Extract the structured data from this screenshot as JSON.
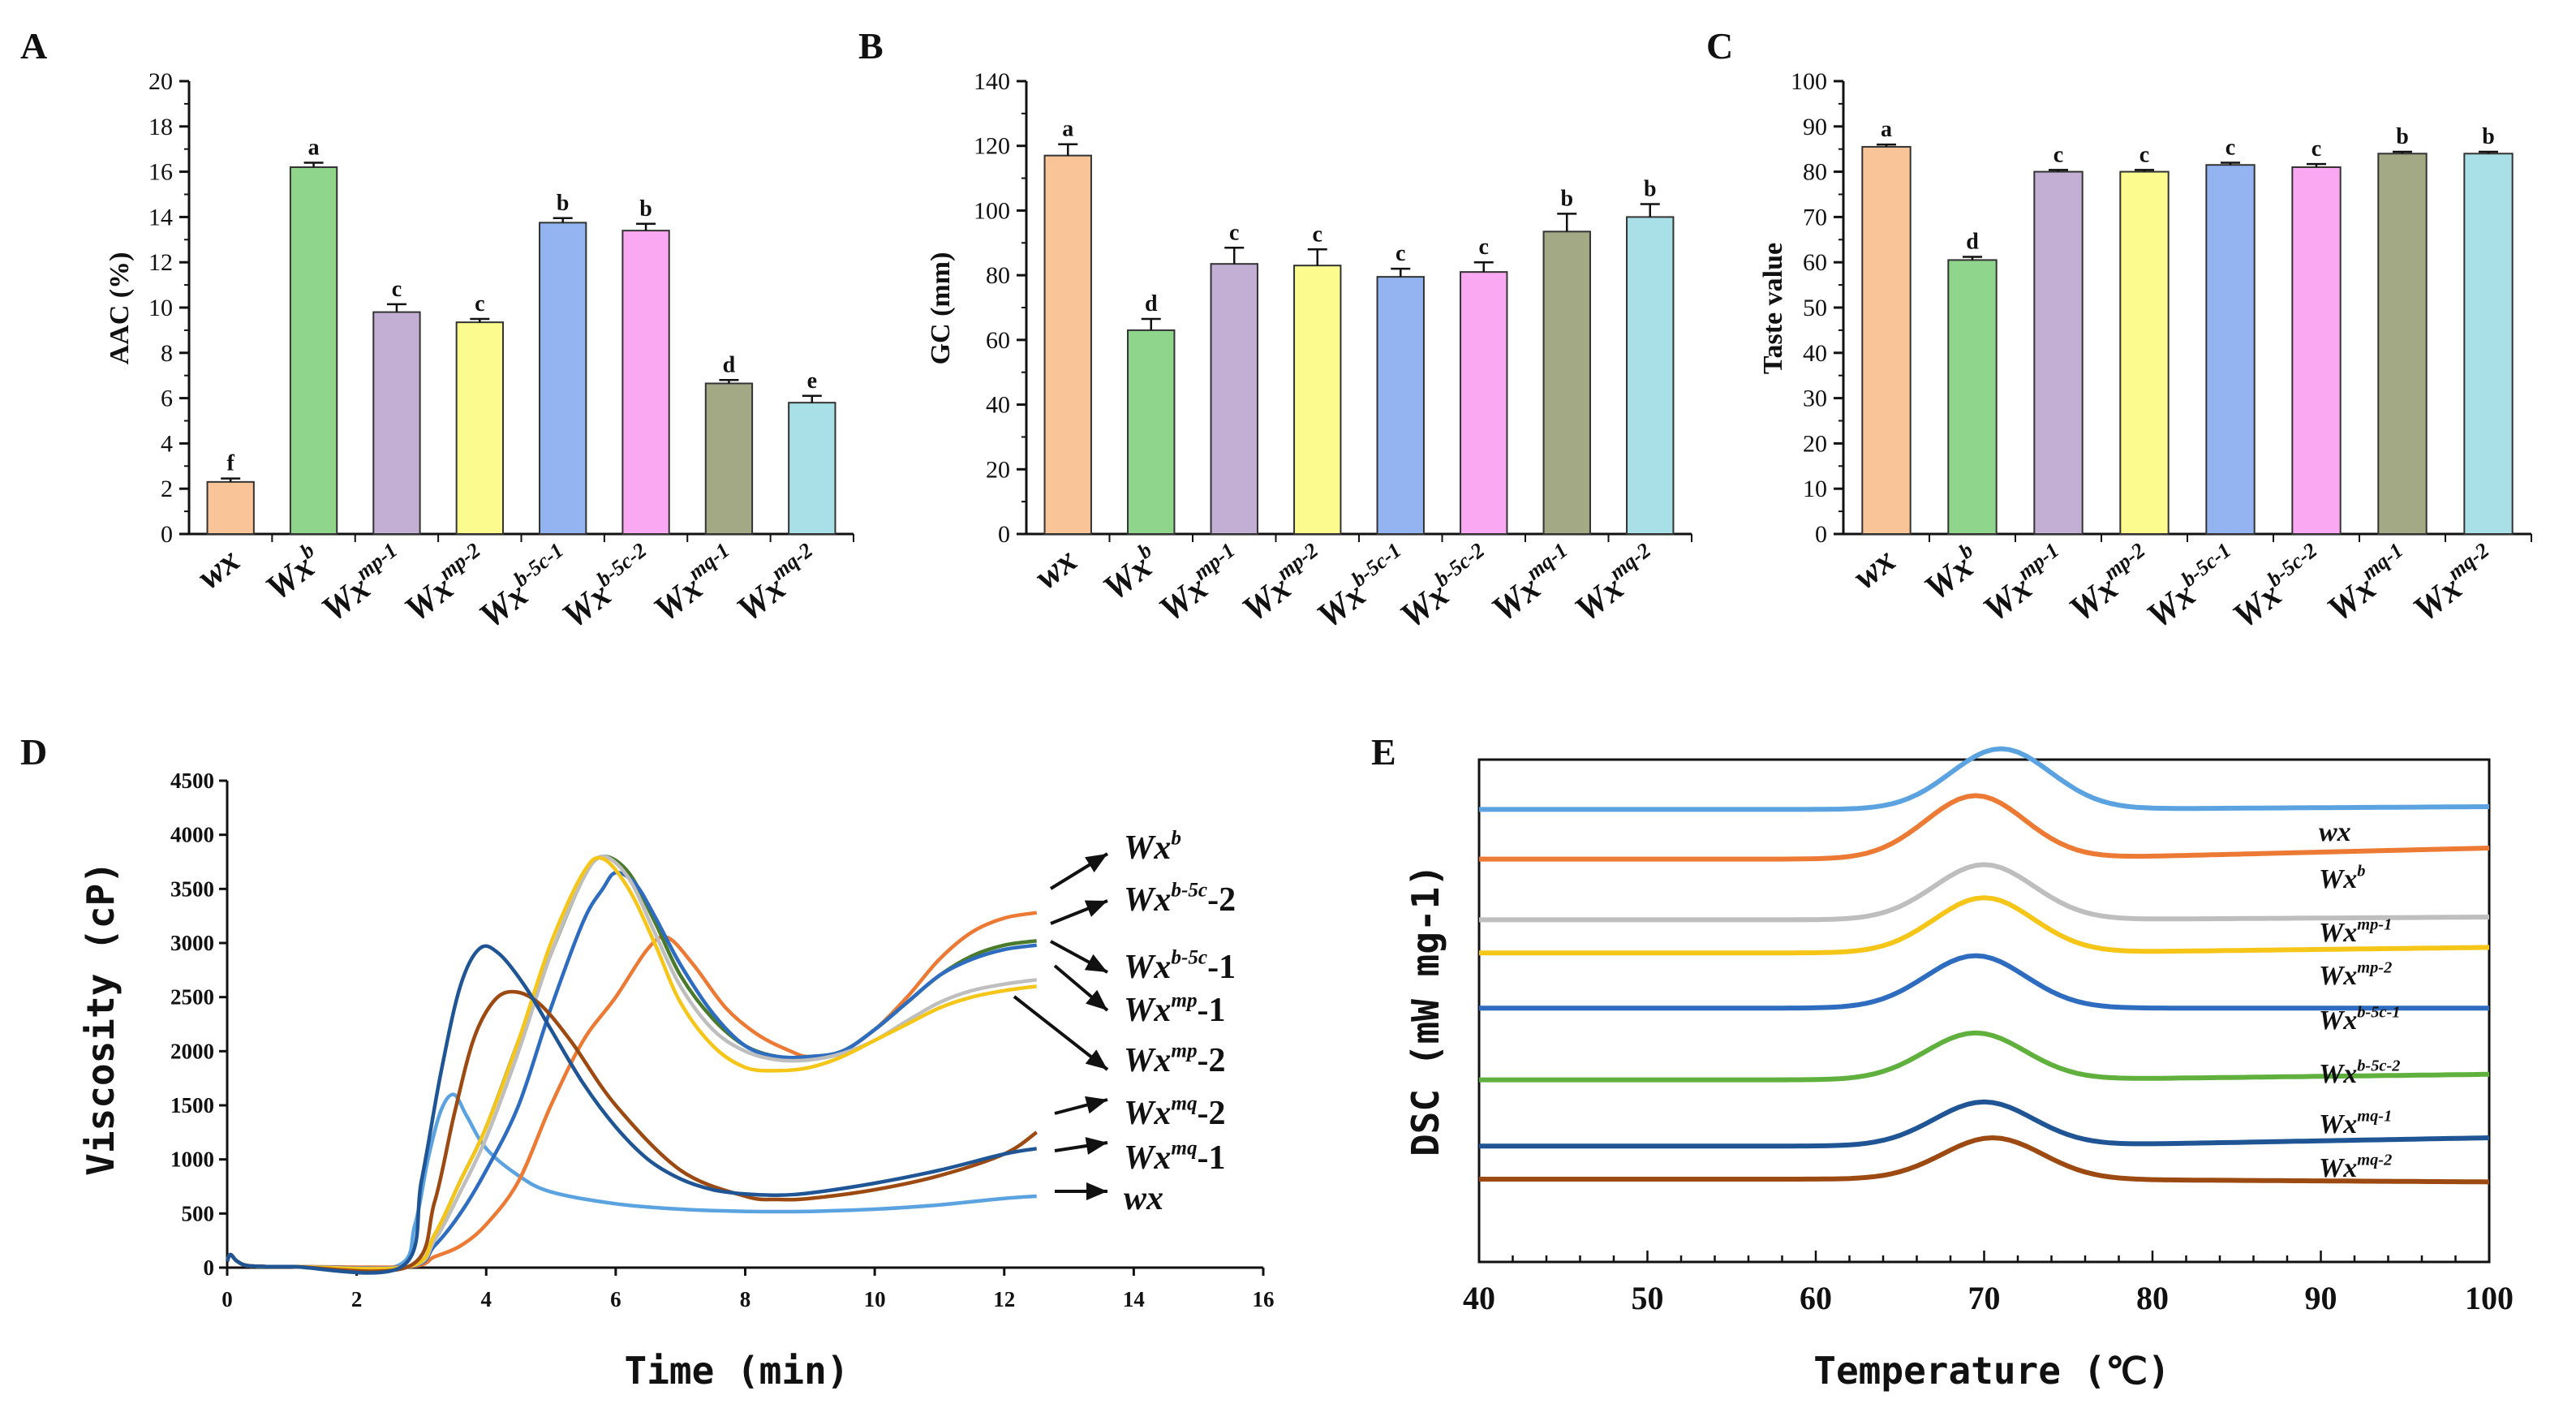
{
  "bar_colors": [
    "#F9C497",
    "#8FD68C",
    "#C3AED4",
    "#FBFB8E",
    "#93B4F1",
    "#FBA8F3",
    "#A4A985",
    "#A9DFE6"
  ],
  "genotypes": [
    {
      "base": "wx",
      "sup": ""
    },
    {
      "base": "Wx",
      "sup": "b"
    },
    {
      "base": "Wx",
      "sup": "mp-1"
    },
    {
      "base": "Wx",
      "sup": "mp-2"
    },
    {
      "base": "Wx",
      "sup": "b-5c-1"
    },
    {
      "base": "Wx",
      "sup": "b-5c-2"
    },
    {
      "base": "Wx",
      "sup": "mq-1"
    },
    {
      "base": "Wx",
      "sup": "mq-2"
    }
  ],
  "chart_data": [
    {
      "panel": "A",
      "type": "bar",
      "ylabel": "AAC (%)",
      "ylim": [
        0,
        20
      ],
      "yticks": [
        0,
        2,
        4,
        6,
        8,
        10,
        12,
        14,
        16,
        18,
        20
      ],
      "values": [
        2.3,
        16.2,
        9.8,
        9.35,
        13.75,
        13.4,
        6.65,
        5.8
      ],
      "errors": [
        0.15,
        0.2,
        0.35,
        0.15,
        0.2,
        0.3,
        0.15,
        0.3
      ],
      "letters": [
        "f",
        "a",
        "c",
        "c",
        "b",
        "b",
        "d",
        "e"
      ]
    },
    {
      "panel": "B",
      "type": "bar",
      "ylabel": "GC (mm)",
      "ylim": [
        0,
        140
      ],
      "yticks": [
        0,
        20,
        40,
        60,
        80,
        100,
        120,
        140
      ],
      "values": [
        117,
        63,
        83.5,
        83,
        79.5,
        81,
        93.5,
        98
      ],
      "errors": [
        3.5,
        3.5,
        5,
        5,
        2.5,
        3,
        5.5,
        4
      ],
      "letters": [
        "a",
        "d",
        "c",
        "c",
        "c",
        "c",
        "b",
        "b"
      ]
    },
    {
      "panel": "C",
      "type": "bar",
      "ylabel": "Taste value",
      "ylim": [
        0,
        100
      ],
      "yticks": [
        0,
        10,
        20,
        30,
        40,
        50,
        60,
        70,
        80,
        90,
        100
      ],
      "values": [
        85.5,
        60.5,
        80,
        80,
        81.5,
        81,
        84,
        84
      ],
      "errors": [
        0.5,
        0.7,
        0.4,
        0.4,
        0.5,
        0.7,
        0.4,
        0.4
      ],
      "letters": [
        "a",
        "d",
        "c",
        "c",
        "c",
        "c",
        "b",
        "b"
      ]
    },
    {
      "panel": "D",
      "type": "line",
      "xlabel": "Time (min)",
      "ylabel": "Viscosity (cP)",
      "xlim": [
        0,
        16
      ],
      "ylim": [
        0,
        4500
      ],
      "xticks": [
        0,
        2,
        4,
        6,
        8,
        10,
        12,
        14,
        16
      ],
      "yticks": [
        0,
        500,
        1000,
        1500,
        2000,
        2500,
        3000,
        3500,
        4000,
        4500
      ],
      "labels": [
        {
          "base": "Wx",
          "sup": "b",
          "suffix": ""
        },
        {
          "base": "Wx",
          "sup": "b-5c",
          "suffix": "-2"
        },
        {
          "base": "Wx",
          "sup": "b-5c",
          "suffix": "-1"
        },
        {
          "base": "Wx",
          "sup": "mp",
          "suffix": "-1"
        },
        {
          "base": "Wx",
          "sup": "mp",
          "suffix": "-2"
        },
        {
          "base": "Wx",
          "sup": "mq",
          "suffix": "-2"
        },
        {
          "base": "Wx",
          "sup": "mq",
          "suffix": "-1"
        },
        {
          "base": "wx",
          "sup": "",
          "suffix": ""
        }
      ],
      "series": [
        {
          "name": "wx",
          "color": "#5BA3E0",
          "x": [
            0,
            0.05,
            0.15,
            0.3,
            0.6,
            1,
            2.6,
            2.9,
            3.1,
            3.3,
            3.5,
            3.7,
            4,
            4.5,
            5,
            6,
            7,
            8,
            9,
            10,
            11,
            12,
            12.5
          ],
          "y": [
            60,
            120,
            60,
            20,
            10,
            10,
            10,
            400,
            1000,
            1450,
            1600,
            1400,
            1100,
            850,
            700,
            590,
            540,
            520,
            520,
            540,
            580,
            640,
            660
          ]
        },
        {
          "name": "Wx-b",
          "color": "#EC7A34",
          "x": [
            0,
            0.05,
            0.15,
            0.3,
            0.6,
            1,
            2.8,
            3.2,
            3.6,
            4,
            4.5,
            5,
            5.5,
            6,
            6.5,
            6.8,
            7.2,
            7.7,
            8.2,
            8.7,
            9,
            9.5,
            10,
            10.5,
            11,
            11.5,
            12,
            12.5
          ],
          "y": [
            60,
            120,
            60,
            20,
            10,
            10,
            10,
            100,
            200,
            400,
            800,
            1500,
            2100,
            2500,
            2950,
            3050,
            2800,
            2400,
            2150,
            2000,
            1950,
            2000,
            2200,
            2500,
            2850,
            3100,
            3230,
            3280
          ]
        },
        {
          "name": "Wx-b-5c-2",
          "color": "#4A7B2C",
          "x": [
            0,
            0.05,
            0.15,
            0.3,
            0.6,
            1,
            2.8,
            3.2,
            3.6,
            4,
            4.5,
            5,
            5.5,
            5.8,
            6.2,
            6.6,
            7,
            7.5,
            8,
            8.5,
            9,
            9.5,
            10,
            10.5,
            11,
            11.5,
            12,
            12.5
          ],
          "y": [
            60,
            120,
            60,
            20,
            10,
            10,
            10,
            300,
            800,
            1300,
            2100,
            2900,
            3600,
            3800,
            3650,
            3200,
            2700,
            2300,
            2050,
            1950,
            1950,
            2000,
            2200,
            2450,
            2700,
            2880,
            2980,
            3020
          ]
        },
        {
          "name": "Wx-b-5c-1",
          "color": "#2E6CC0",
          "x": [
            0,
            0.05,
            0.15,
            0.3,
            0.6,
            1,
            2.8,
            3.2,
            3.6,
            4,
            4.5,
            5,
            5.5,
            5.8,
            6,
            6.3,
            6.6,
            7,
            7.5,
            8,
            8.5,
            9,
            9.5,
            10,
            10.5,
            11,
            11.5,
            12,
            12.5
          ],
          "y": [
            60,
            120,
            60,
            20,
            10,
            10,
            10,
            200,
            500,
            900,
            1500,
            2400,
            3200,
            3500,
            3650,
            3550,
            3250,
            2800,
            2350,
            2050,
            1950,
            1950,
            2000,
            2200,
            2450,
            2700,
            2850,
            2940,
            2980
          ]
        },
        {
          "name": "Wx-mp-1",
          "color": "#BEBEBE",
          "x": [
            0,
            0.05,
            0.15,
            0.3,
            0.6,
            1,
            2.8,
            3.2,
            3.6,
            4,
            4.5,
            5,
            5.5,
            5.8,
            6.2,
            6.6,
            7,
            7.5,
            8,
            8.5,
            9,
            9.5,
            10,
            10.5,
            11,
            11.5,
            12,
            12.5
          ],
          "y": [
            60,
            120,
            60,
            20,
            10,
            10,
            10,
            250,
            700,
            1200,
            2000,
            2900,
            3600,
            3800,
            3600,
            3100,
            2600,
            2200,
            2000,
            1920,
            1920,
            1980,
            2100,
            2280,
            2450,
            2560,
            2620,
            2660
          ]
        },
        {
          "name": "Wx-mp-2",
          "color": "#F5C518",
          "x": [
            0,
            0.05,
            0.15,
            0.3,
            0.6,
            1,
            2.8,
            3.2,
            3.6,
            4,
            4.5,
            5,
            5.5,
            5.8,
            6.2,
            6.6,
            7,
            7.5,
            8,
            8.5,
            9,
            9.5,
            10,
            10.5,
            11,
            11.5,
            12,
            12.5
          ],
          "y": [
            60,
            120,
            60,
            20,
            10,
            10,
            10,
            300,
            800,
            1300,
            2100,
            3000,
            3650,
            3780,
            3500,
            3000,
            2450,
            2050,
            1850,
            1820,
            1850,
            1950,
            2100,
            2250,
            2400,
            2500,
            2560,
            2600
          ]
        },
        {
          "name": "Wx-mq-2",
          "color": "#9C4A12",
          "x": [
            0,
            0.05,
            0.15,
            0.3,
            0.6,
            1,
            2.8,
            3.2,
            3.5,
            3.8,
            4.1,
            4.4,
            4.8,
            5.3,
            6,
            7,
            8,
            8.5,
            9,
            10,
            11,
            12,
            12.5
          ],
          "y": [
            60,
            120,
            60,
            20,
            10,
            10,
            10,
            600,
            1400,
            2100,
            2450,
            2550,
            2450,
            2100,
            1500,
            900,
            660,
            630,
            640,
            720,
            850,
            1050,
            1250
          ]
        },
        {
          "name": "Wx-mq-1",
          "color": "#1F5594",
          "x": [
            0,
            0.05,
            0.15,
            0.3,
            0.6,
            1,
            2.7,
            3,
            3.3,
            3.6,
            3.9,
            4.2,
            4.6,
            5,
            5.5,
            6,
            6.5,
            7,
            7.5,
            8,
            8.5,
            9,
            10,
            11,
            12,
            12.5
          ],
          "y": [
            60,
            120,
            60,
            20,
            10,
            10,
            10,
            800,
            1800,
            2600,
            2950,
            2900,
            2600,
            2200,
            1700,
            1300,
            1000,
            820,
            720,
            680,
            670,
            690,
            780,
            900,
            1050,
            1100
          ]
        }
      ]
    },
    {
      "panel": "E",
      "type": "line",
      "xlabel": "Temperature (℃)",
      "ylabel": "DSC (mW mg-1)",
      "xlim": [
        40,
        100
      ],
      "xticks": [
        40,
        50,
        60,
        70,
        80,
        90,
        100
      ],
      "labels": [
        {
          "base": "wx",
          "sup": ""
        },
        {
          "base": "Wx",
          "sup": "b"
        },
        {
          "base": "Wx",
          "sup": "mp-1"
        },
        {
          "base": "Wx",
          "sup": "mp-2"
        },
        {
          "base": "Wx",
          "sup": "b-5c-1"
        },
        {
          "base": "Wx",
          "sup": "b-5c-2"
        },
        {
          "base": "Wx",
          "sup": "mq-1"
        },
        {
          "base": "Wx",
          "sup": "mq-2"
        }
      ],
      "series": [
        {
          "name": "wx",
          "color": "#5BA3E0",
          "baseline": 8.2,
          "peak": 1.1,
          "peak_temp": 71,
          "end_offset": 0.05
        },
        {
          "name": "Wx-b",
          "color": "#EC7A34",
          "baseline": 7.3,
          "peak": 1.15,
          "peak_temp": 69.5,
          "end_offset": 0.2
        },
        {
          "name": "Wx-mp-1",
          "color": "#BEBEBE",
          "baseline": 6.2,
          "peak": 1.0,
          "peak_temp": 70,
          "end_offset": 0.05
        },
        {
          "name": "Wx-mp-2",
          "color": "#F5C518",
          "baseline": 5.6,
          "peak": 1.0,
          "peak_temp": 70,
          "end_offset": 0.1
        },
        {
          "name": "Wx-b-5c-1",
          "color": "#2E6CC0",
          "baseline": 4.6,
          "peak": 0.95,
          "peak_temp": 69.5,
          "end_offset": 0.0
        },
        {
          "name": "Wx-b-5c-2",
          "color": "#5FB03D",
          "baseline": 3.3,
          "peak": 0.85,
          "peak_temp": 69.5,
          "end_offset": 0.1
        },
        {
          "name": "Wx-mq-1",
          "color": "#1F5594",
          "baseline": 2.1,
          "peak": 0.8,
          "peak_temp": 70,
          "end_offset": 0.15
        },
        {
          "name": "Wx-mq-2",
          "color": "#9C4A12",
          "baseline": 1.5,
          "peak": 0.75,
          "peak_temp": 70.5,
          "end_offset": -0.05
        }
      ]
    }
  ]
}
